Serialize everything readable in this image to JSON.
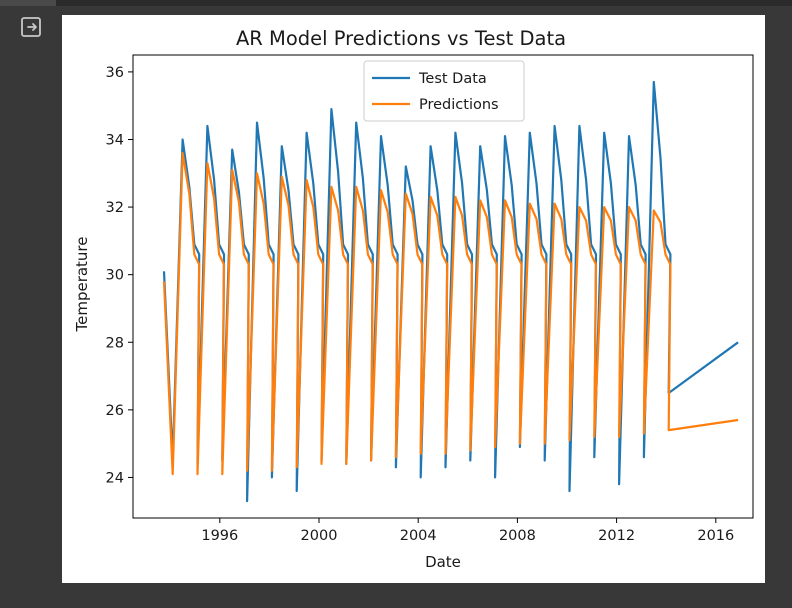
{
  "cell_output": {
    "icon": "output-redirect-icon"
  },
  "colors": {
    "test": "#1f77b4",
    "pred": "#ff7f0e",
    "background": "#383838"
  },
  "chart_data": {
    "type": "line",
    "title": "AR Model Predictions vs Test Data",
    "xlabel": "Date",
    "ylabel": "Temperature",
    "xlim": [
      1992.5,
      2017.5
    ],
    "ylim": [
      22.8,
      36.5
    ],
    "xticks": [
      "1996",
      "2000",
      "2004",
      "2008",
      "2012",
      "2016"
    ],
    "yticks": [
      "24",
      "26",
      "28",
      "30",
      "32",
      "34",
      "36"
    ],
    "legend_position": "upper center",
    "series": [
      {
        "name": "Test Data",
        "peaks": [
          34.0,
          34.4,
          33.7,
          34.5,
          33.8,
          34.2,
          34.9,
          34.5,
          34.1,
          33.2,
          33.8,
          34.2,
          33.8,
          34.1,
          34.2,
          34.4,
          34.4,
          34.2,
          34.1,
          35.7
        ],
        "troughs": [
          24.5,
          24.4,
          24.5,
          23.3,
          24.0,
          23.6,
          24.5,
          24.4,
          24.5,
          24.3,
          24.0,
          24.3,
          24.5,
          24.0,
          24.9,
          24.5,
          23.6,
          24.6,
          23.8,
          24.6,
          26.5
        ],
        "start": [
          1993.75,
          30.1
        ],
        "end": [
          2016.9,
          28.0
        ]
      },
      {
        "name": "Predictions",
        "peaks": [
          33.6,
          33.3,
          33.1,
          33.0,
          32.9,
          32.8,
          32.6,
          32.6,
          32.5,
          32.4,
          32.3,
          32.3,
          32.2,
          32.2,
          32.1,
          32.1,
          32.0,
          32.0,
          32.0,
          31.9
        ],
        "troughs": [
          24.1,
          24.1,
          24.1,
          24.2,
          24.2,
          24.3,
          24.4,
          24.4,
          24.5,
          24.6,
          24.7,
          24.7,
          24.8,
          24.9,
          25.0,
          25.0,
          25.1,
          25.2,
          25.2,
          25.3,
          25.4
        ],
        "start": [
          1993.75,
          29.8
        ],
        "end": [
          2016.9,
          25.7
        ]
      }
    ]
  }
}
